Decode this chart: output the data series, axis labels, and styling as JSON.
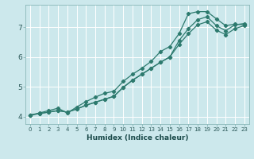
{
  "xlabel": "Humidex (Indice chaleur)",
  "bg_color": "#cce8ec",
  "grid_color": "#ffffff",
  "line_color": "#2d7a6e",
  "xlim": [
    -0.5,
    23.5
  ],
  "ylim": [
    3.75,
    7.75
  ],
  "xticks": [
    0,
    1,
    2,
    3,
    4,
    5,
    6,
    7,
    8,
    9,
    10,
    11,
    12,
    13,
    14,
    15,
    16,
    17,
    18,
    19,
    20,
    21,
    22,
    23
  ],
  "yticks": [
    4,
    5,
    6,
    7
  ],
  "line1_x": [
    0,
    1,
    2,
    3,
    4,
    5,
    6,
    7,
    8,
    9,
    10,
    11,
    12,
    13,
    14,
    15,
    16,
    17,
    18,
    19,
    20,
    21,
    22,
    23
  ],
  "line1_y": [
    4.05,
    4.1,
    4.15,
    4.2,
    4.15,
    4.25,
    4.38,
    4.48,
    4.58,
    4.68,
    4.98,
    5.22,
    5.42,
    5.62,
    5.82,
    6.0,
    6.42,
    6.78,
    7.08,
    7.18,
    6.9,
    6.75,
    6.95,
    7.05
  ],
  "line2_x": [
    0,
    1,
    2,
    3,
    4,
    5,
    6,
    7,
    8,
    9,
    10,
    11,
    12,
    13,
    14,
    15,
    16,
    17,
    18,
    19,
    20,
    21,
    22,
    23
  ],
  "line2_y": [
    4.05,
    4.12,
    4.2,
    4.28,
    4.12,
    4.32,
    4.5,
    4.65,
    4.78,
    4.85,
    5.18,
    5.42,
    5.62,
    5.85,
    6.18,
    6.35,
    6.78,
    7.45,
    7.52,
    7.52,
    7.28,
    7.05,
    7.1,
    7.08
  ],
  "line3_x": [
    0,
    1,
    2,
    3,
    4,
    5,
    6,
    7,
    8,
    9,
    10,
    11,
    12,
    13,
    14,
    15,
    16,
    17,
    18,
    19,
    20,
    21,
    22,
    23
  ],
  "line3_y": [
    4.05,
    4.1,
    4.15,
    4.2,
    4.15,
    4.25,
    4.38,
    4.48,
    4.58,
    4.68,
    4.98,
    5.22,
    5.42,
    5.62,
    5.82,
    6.0,
    6.55,
    6.95,
    7.25,
    7.35,
    7.05,
    6.88,
    7.08,
    7.12
  ],
  "marker": "D",
  "markersize": 2.2,
  "linewidth": 0.9,
  "tick_fontsize_x": 5.0,
  "tick_fontsize_y": 6.5,
  "xlabel_fontsize": 6.5
}
